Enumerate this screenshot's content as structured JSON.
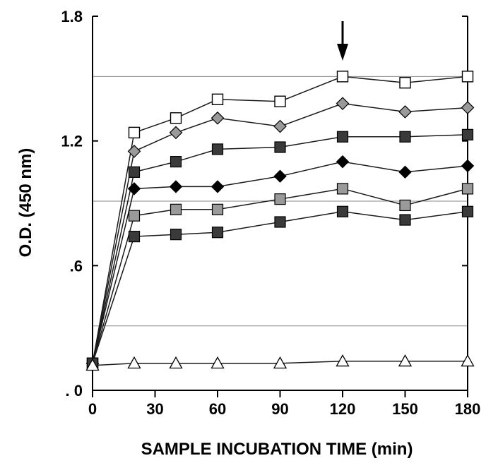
{
  "chart_data": {
    "type": "line",
    "title": "",
    "xlabel": "SAMPLE INCUBATION TIME (min)",
    "ylabel": "O.D. (450 nm)",
    "xlim": [
      0,
      180
    ],
    "ylim": [
      0,
      1.8
    ],
    "x_ticks": [
      0,
      30,
      60,
      90,
      120,
      150,
      180
    ],
    "x_tick_labels": [
      "0",
      "30",
      "60",
      "90",
      "120",
      "150",
      "180"
    ],
    "y_ticks": [
      0,
      0.6,
      1.2,
      1.8
    ],
    "y_tick_labels": [
      ". 0",
      ".6",
      "1.2",
      "1.8"
    ],
    "reference_lines_y": [
      1.51,
      0.91,
      0.31
    ],
    "arrow_at_x": 120,
    "grid": false,
    "legend": "none",
    "series": [
      {
        "marker": "open-square",
        "x": [
          0,
          20,
          40,
          60,
          90,
          120,
          150,
          180
        ],
        "y": [
          0.13,
          1.24,
          1.31,
          1.4,
          1.39,
          1.51,
          1.48,
          1.51
        ]
      },
      {
        "marker": "gray-diamond",
        "x": [
          0,
          20,
          40,
          60,
          90,
          120,
          150,
          180
        ],
        "y": [
          0.13,
          1.15,
          1.24,
          1.31,
          1.27,
          1.38,
          1.34,
          1.36
        ]
      },
      {
        "marker": "dark-square",
        "x": [
          0,
          20,
          40,
          60,
          90,
          120,
          150,
          180
        ],
        "y": [
          0.13,
          1.05,
          1.1,
          1.16,
          1.17,
          1.22,
          1.22,
          1.23
        ]
      },
      {
        "marker": "black-diamond",
        "x": [
          0,
          20,
          40,
          60,
          90,
          120,
          150,
          180
        ],
        "y": [
          0.13,
          0.97,
          0.98,
          0.98,
          1.03,
          1.1,
          1.05,
          1.08
        ]
      },
      {
        "marker": "gray-square",
        "x": [
          0,
          20,
          40,
          60,
          90,
          120,
          150,
          180
        ],
        "y": [
          0.13,
          0.84,
          0.87,
          0.87,
          0.92,
          0.97,
          0.89,
          0.97
        ]
      },
      {
        "marker": "dark-square",
        "x": [
          0,
          20,
          40,
          60,
          90,
          120,
          150,
          180
        ],
        "y": [
          0.13,
          0.74,
          0.75,
          0.76,
          0.81,
          0.86,
          0.82,
          0.86
        ]
      },
      {
        "marker": "open-triangle",
        "x": [
          0,
          20,
          40,
          60,
          90,
          120,
          150,
          180
        ],
        "y": [
          0.12,
          0.13,
          0.13,
          0.13,
          0.13,
          0.14,
          0.14,
          0.14
        ]
      }
    ]
  },
  "colors": {
    "axis": "#000000",
    "line": "#1a1a1a",
    "reference_line": "#8a8a8a",
    "open_fill": "#ffffff",
    "gray_fill": "#9a9a9a",
    "dark_fill": "#3a3a3a",
    "black_fill": "#000000"
  }
}
